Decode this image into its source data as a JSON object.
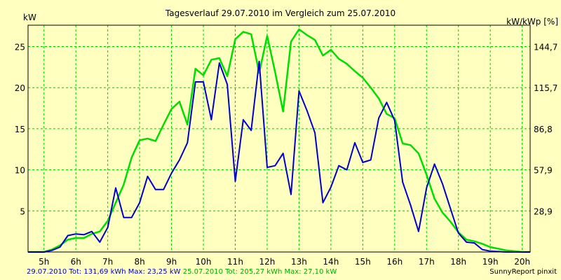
{
  "chart_data": {
    "type": "line",
    "title": "Tagesverlauf 29.07.2010 im Vergleich zum 25.07.2010",
    "ylabel_left": "kW",
    "ylabel_right": "kW/kWp [%]",
    "x_ticks": [
      "5h",
      "6h",
      "7h",
      "8h",
      "9h",
      "10h",
      "11h",
      "12h",
      "13h",
      "14h",
      "15h",
      "16h",
      "17h",
      "18h",
      "19h",
      "20h"
    ],
    "y_ticks_left": [
      "5",
      "10",
      "15",
      "20",
      "25"
    ],
    "y_ticks_right": [
      "28,9",
      "57,9",
      "86,8",
      "115,7",
      "144,7"
    ],
    "xlim": [
      4.5,
      20.25
    ],
    "ylim": [
      0,
      27.6
    ],
    "grid": true,
    "series": [
      {
        "name": "29.07.2010",
        "color": "#0000cc",
        "points": [
          [
            4.5,
            0
          ],
          [
            4.75,
            0
          ],
          [
            5.0,
            0
          ],
          [
            5.25,
            0.2
          ],
          [
            5.5,
            0.6
          ],
          [
            5.75,
            2.0
          ],
          [
            6.0,
            2.2
          ],
          [
            6.25,
            2.1
          ],
          [
            6.5,
            2.5
          ],
          [
            6.75,
            1.2
          ],
          [
            7.0,
            3.0
          ],
          [
            7.25,
            7.8
          ],
          [
            7.5,
            4.2
          ],
          [
            7.75,
            4.2
          ],
          [
            8.0,
            6.0
          ],
          [
            8.25,
            9.2
          ],
          [
            8.5,
            7.6
          ],
          [
            8.75,
            7.6
          ],
          [
            9.0,
            9.6
          ],
          [
            9.25,
            11.2
          ],
          [
            9.5,
            13.3
          ],
          [
            9.75,
            20.7
          ],
          [
            10.0,
            20.7
          ],
          [
            10.25,
            16.1
          ],
          [
            10.5,
            23.0
          ],
          [
            10.75,
            20.4
          ],
          [
            11.0,
            8.6
          ],
          [
            11.25,
            16.1
          ],
          [
            11.5,
            14.8
          ],
          [
            11.75,
            23.2
          ],
          [
            12.0,
            10.3
          ],
          [
            12.25,
            10.5
          ],
          [
            12.5,
            12.0
          ],
          [
            12.75,
            7.0
          ],
          [
            13.0,
            19.6
          ],
          [
            13.25,
            17.2
          ],
          [
            13.5,
            14.5
          ],
          [
            13.75,
            6.0
          ],
          [
            14.0,
            7.9
          ],
          [
            14.25,
            10.5
          ],
          [
            14.5,
            10.0
          ],
          [
            14.75,
            13.3
          ],
          [
            15.0,
            10.9
          ],
          [
            15.25,
            11.2
          ],
          [
            15.5,
            16.3
          ],
          [
            15.75,
            18.2
          ],
          [
            16.0,
            16.0
          ],
          [
            16.25,
            8.5
          ],
          [
            16.5,
            5.7
          ],
          [
            16.75,
            2.5
          ],
          [
            17.0,
            7.8
          ],
          [
            17.25,
            10.7
          ],
          [
            17.5,
            8.3
          ],
          [
            17.75,
            5.3
          ],
          [
            18.0,
            2.3
          ],
          [
            18.25,
            1.2
          ],
          [
            18.5,
            1.1
          ],
          [
            18.75,
            0.3
          ],
          [
            19.0,
            0.1
          ],
          [
            19.25,
            0.05
          ],
          [
            19.5,
            0
          ],
          [
            20.0,
            0
          ],
          [
            20.25,
            0
          ]
        ]
      },
      {
        "name": "25.07.2010",
        "color": "#00dd00",
        "points": [
          [
            4.5,
            0
          ],
          [
            4.75,
            0
          ],
          [
            5.0,
            0
          ],
          [
            5.25,
            0.3
          ],
          [
            5.5,
            0.8
          ],
          [
            5.75,
            1.5
          ],
          [
            6.0,
            1.7
          ],
          [
            6.25,
            1.7
          ],
          [
            6.5,
            2.2
          ],
          [
            6.75,
            2.5
          ],
          [
            7.0,
            3.8
          ],
          [
            7.25,
            6.0
          ],
          [
            7.5,
            8.2
          ],
          [
            7.75,
            11.5
          ],
          [
            8.0,
            13.6
          ],
          [
            8.25,
            13.8
          ],
          [
            8.5,
            13.5
          ],
          [
            8.75,
            15.5
          ],
          [
            9.0,
            17.4
          ],
          [
            9.25,
            18.3
          ],
          [
            9.5,
            15.5
          ],
          [
            9.75,
            22.3
          ],
          [
            10.0,
            21.5
          ],
          [
            10.25,
            23.4
          ],
          [
            10.5,
            23.6
          ],
          [
            10.75,
            21.4
          ],
          [
            11.0,
            25.9
          ],
          [
            11.25,
            26.8
          ],
          [
            11.5,
            26.5
          ],
          [
            11.75,
            21.8
          ],
          [
            12.0,
            26.3
          ],
          [
            12.25,
            21.9
          ],
          [
            12.5,
            17.1
          ],
          [
            12.75,
            25.6
          ],
          [
            13.0,
            27.1
          ],
          [
            13.25,
            26.4
          ],
          [
            13.5,
            25.8
          ],
          [
            13.75,
            23.9
          ],
          [
            14.0,
            24.6
          ],
          [
            14.25,
            23.5
          ],
          [
            14.5,
            22.9
          ],
          [
            14.75,
            22.0
          ],
          [
            15.0,
            21.2
          ],
          [
            15.25,
            20.0
          ],
          [
            15.5,
            18.7
          ],
          [
            15.75,
            16.8
          ],
          [
            16.0,
            16.3
          ],
          [
            16.25,
            13.2
          ],
          [
            16.5,
            13.0
          ],
          [
            16.75,
            12.0
          ],
          [
            17.0,
            9.4
          ],
          [
            17.25,
            6.5
          ],
          [
            17.5,
            4.8
          ],
          [
            17.75,
            3.7
          ],
          [
            18.0,
            2.4
          ],
          [
            18.25,
            1.5
          ],
          [
            18.5,
            1.3
          ],
          [
            18.75,
            1.0
          ],
          [
            19.0,
            0.6
          ],
          [
            19.25,
            0.4
          ],
          [
            19.5,
            0.2
          ],
          [
            19.75,
            0.1
          ],
          [
            20.0,
            0
          ],
          [
            20.25,
            0
          ]
        ]
      }
    ],
    "footer": {
      "blue_text": "29.07.2010 Tot: 131,69 kWh Max: 23,25 kW",
      "green_text": "25.07.2010 Tot: 205,27 kWh Max: 27,10 kW",
      "credit": "SunnyReport pinxit",
      "blue_color": "#0000cc",
      "green_color": "#00aa00"
    },
    "colors": {
      "background": "#ffffc0",
      "grid": "#00cc00"
    }
  }
}
